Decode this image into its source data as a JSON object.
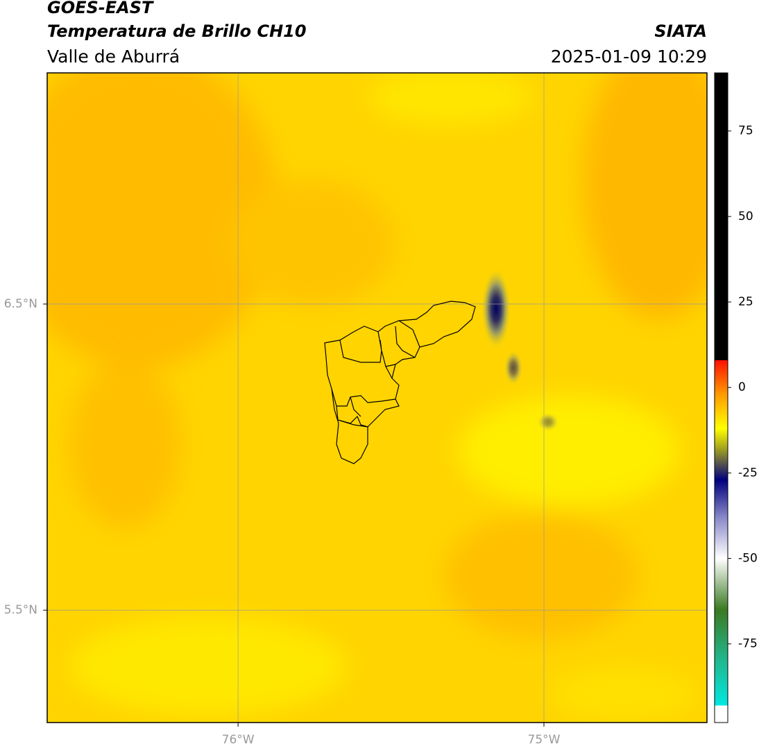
{
  "header": {
    "title": "GOES-EAST",
    "subtitle": "Temperatura de Brillo CH10",
    "region": "Valle de Aburrá",
    "agency": "SIATA",
    "datetime": "2025-01-09 10:29"
  },
  "map": {
    "xlim": [
      -76.624,
      -74.467
    ],
    "ylim": [
      5.133,
      7.255
    ],
    "xticks": [
      {
        "value": -76,
        "label": "76°W"
      },
      {
        "value": -75,
        "label": "75°W"
      }
    ],
    "yticks": [
      {
        "value": 6.5,
        "label": "6.5°N"
      },
      {
        "value": 5.5,
        "label": "5.5°N"
      }
    ],
    "grid": true
  },
  "colorbar": {
    "lim": [
      -98,
      92
    ],
    "ticks": [
      75,
      50,
      25,
      0,
      -25,
      -50,
      -75
    ],
    "colormap": [
      {
        "value": -98,
        "color": "#ffffff"
      },
      {
        "value": -93,
        "color": "#ffffff"
      },
      {
        "value": -93,
        "color": "#00e8e0"
      },
      {
        "value": -80,
        "color": "#20b890"
      },
      {
        "value": -65,
        "color": "#3a7a20"
      },
      {
        "value": -50,
        "color": "#ffffff"
      },
      {
        "value": -38,
        "color": "#8888c8"
      },
      {
        "value": -27,
        "color": "#000080"
      },
      {
        "value": -18,
        "color": "#a0a020"
      },
      {
        "value": -12,
        "color": "#ffff00"
      },
      {
        "value": -2,
        "color": "#ff9a00"
      },
      {
        "value": 8,
        "color": "#ff1000"
      },
      {
        "value": 8,
        "color": "#000000"
      },
      {
        "value": 92,
        "color": "#000000"
      }
    ]
  }
}
